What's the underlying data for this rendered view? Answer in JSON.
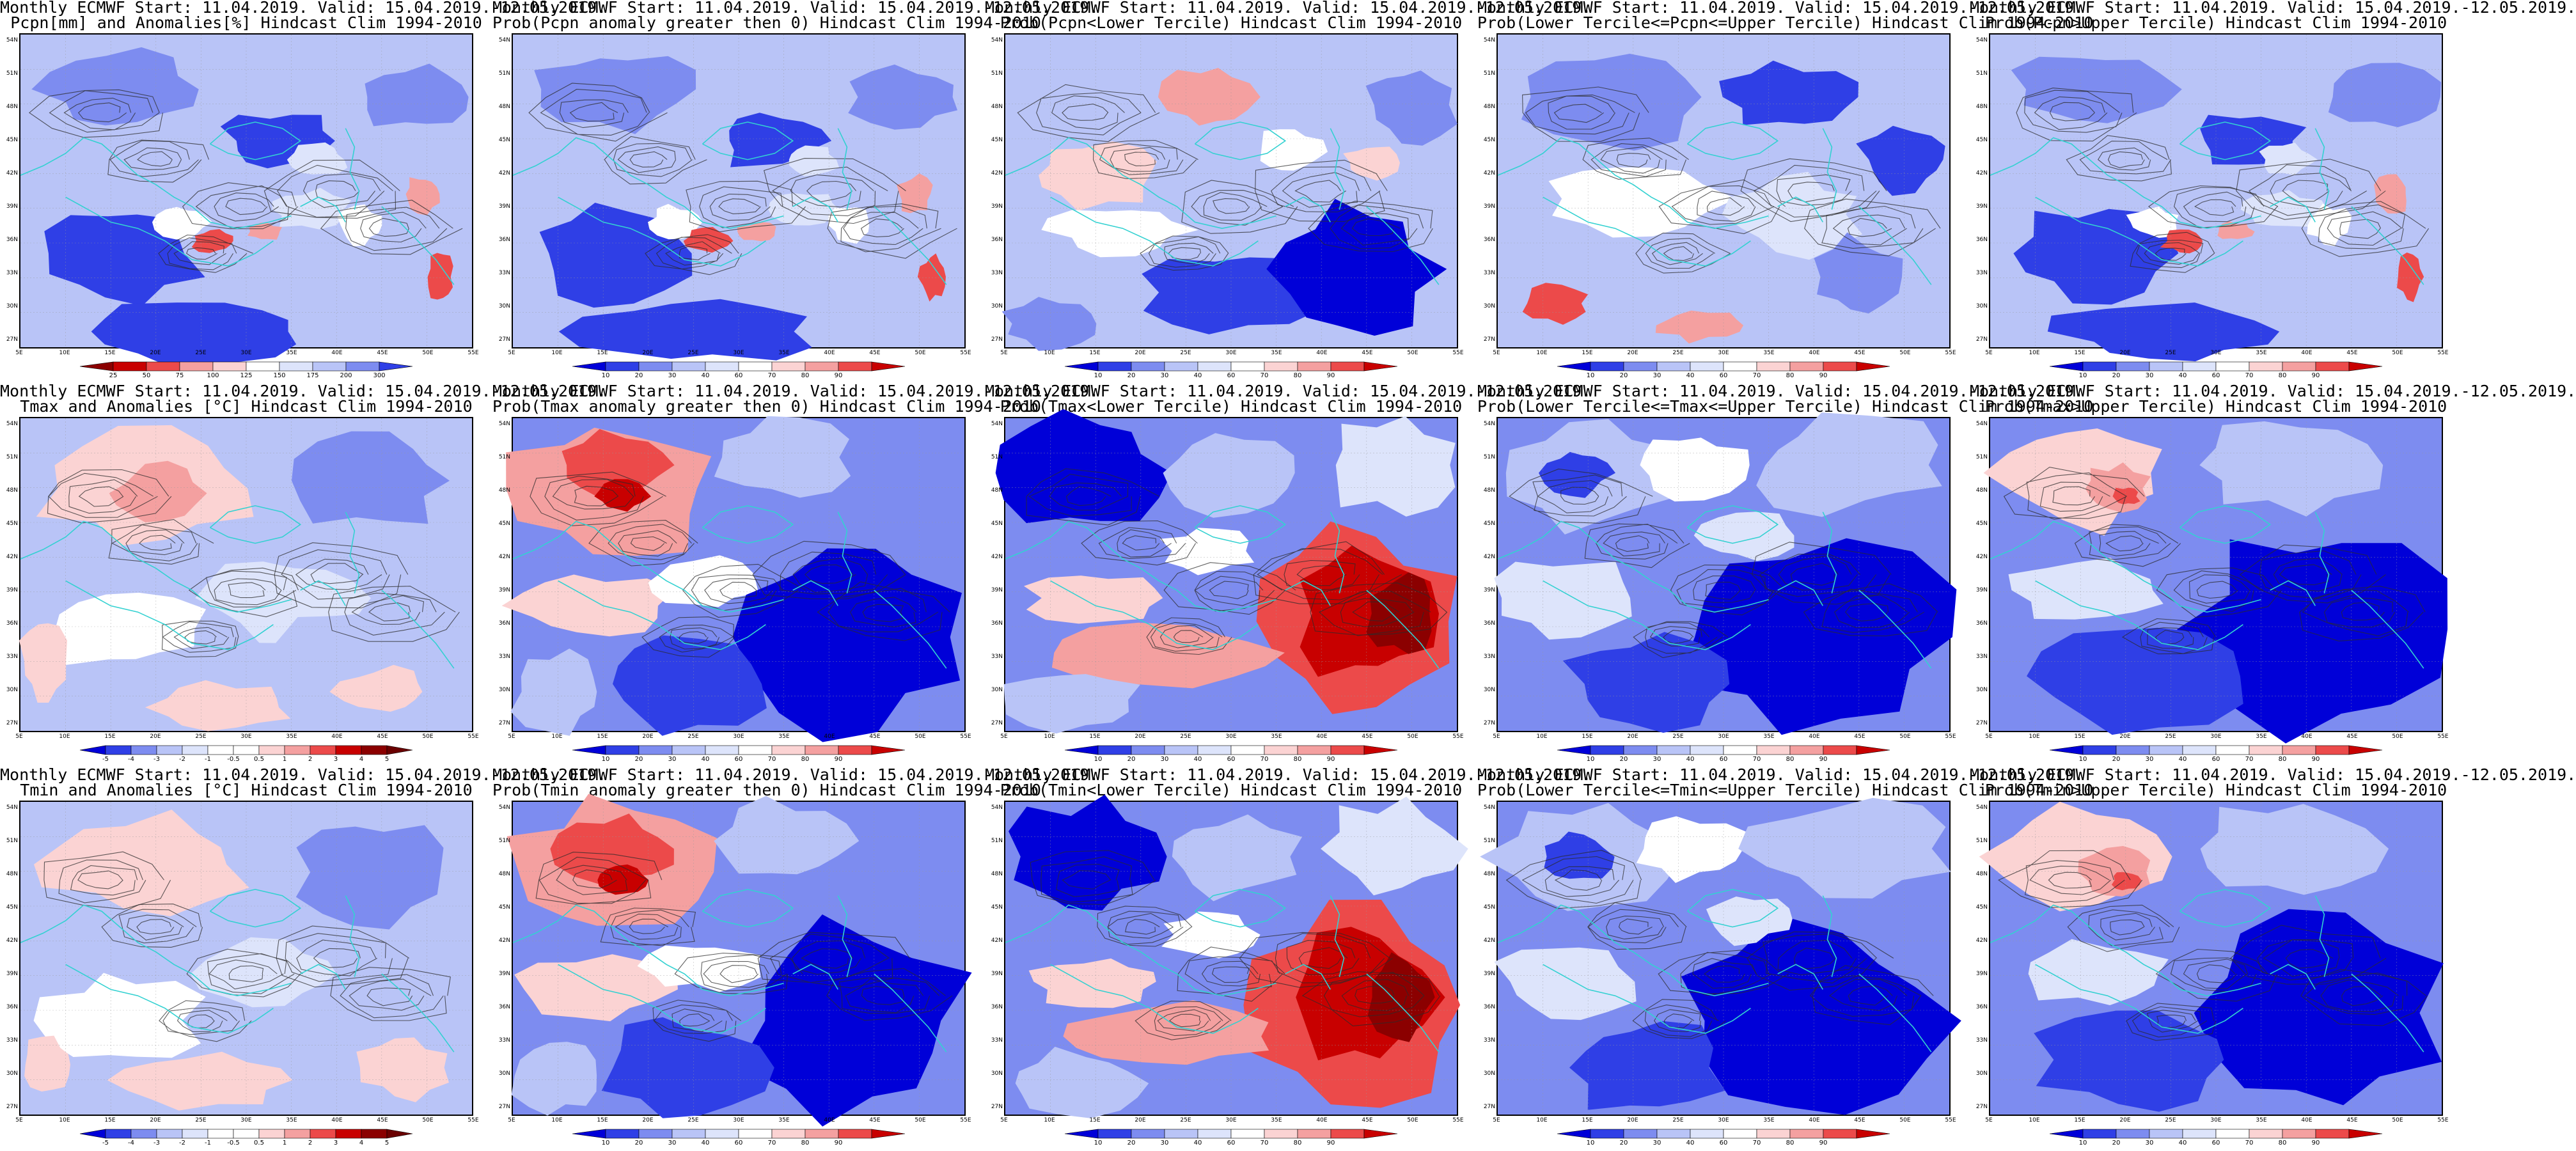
{
  "colors": {
    "deep_blue": "#0000d8",
    "blue": "#2f3fe6",
    "mid_blue": "#7d8cf0",
    "light_blue": "#b9c4f7",
    "pale_blue": "#dde4fb",
    "white": "#ffffff",
    "pale_red": "#fbd3d3",
    "light_red": "#f4a0a0",
    "red": "#ec4a4a",
    "deep_red": "#c80000",
    "dark_red": "#8b0000",
    "coast": "#33d1d1",
    "contour": "#2b2b2b"
  },
  "axes": {
    "lat_labels": [
      "54N",
      "51N",
      "48N",
      "45N",
      "42N",
      "39N",
      "36N",
      "33N",
      "30N",
      "27N"
    ],
    "lon_labels": [
      "5E",
      "10E",
      "15E",
      "20E",
      "25E",
      "30E",
      "35E",
      "40E",
      "45E",
      "50E",
      "55E"
    ]
  },
  "colorbars": {
    "pcpn_anom": [
      "25",
      "50",
      "75",
      "100",
      "125",
      "150",
      "175",
      "200",
      "300"
    ],
    "prob": [
      "10",
      "20",
      "30",
      "40",
      "60",
      "70",
      "80",
      "90"
    ],
    "prob_dark": [
      "10",
      "20",
      "30",
      "40",
      "60",
      "70",
      "80",
      "90"
    ],
    "temp_anom": [
      "-5",
      "-4",
      "-3",
      "-2",
      "-1",
      "-0.5",
      "0.5",
      "1",
      "2",
      "3",
      "4",
      "5"
    ]
  },
  "panels": [
    {
      "id": "pcpn-anom",
      "line1": "Monthly ECMWF Start: 11.04.2019. Valid: 15.04.2019.-12.05.2019.",
      "line2": "Pcpn[mm] and Anomalies[%] Hindcast Clim 1994-2010",
      "colorbar": "pcpn_anom",
      "theme": "pcpn"
    },
    {
      "id": "pcpn-prob-pos",
      "line1": "Monthly ECMWF Start: 11.04.2019. Valid: 15.04.2019.-12.05.2019.",
      "line2": "Prob(Pcpn anomaly greater then 0) Hindcast Clim 1994-2010",
      "colorbar": "prob",
      "theme": "pcpn"
    },
    {
      "id": "pcpn-prob-lower",
      "line1": "Monthly ECMWF Start: 11.04.2019. Valid: 15.04.2019.-12.05.2019.",
      "line2": "Prob(Pcpn<Lower Tercile) Hindcast Clim 1994-2010",
      "colorbar": "prob",
      "theme": "pcpn-low"
    },
    {
      "id": "pcpn-prob-middle",
      "line1": "Monthly ECMWF Start: 11.04.2019. Valid: 15.04.2019.-12.05.2019.",
      "line2": "Prob(Lower Tercile<=Pcpn<=Upper Tercile) Hindcast Clim 1994-2010",
      "colorbar": "prob",
      "theme": "pcpn-mid"
    },
    {
      "id": "pcpn-prob-upper",
      "line1": "Monthly ECMWF Start: 11.04.2019. Valid: 15.04.2019.-12.05.2019.",
      "line2": "Prob(Pcpn>Upper Tercile) Hindcast Clim 1994-2010",
      "colorbar": "prob_dark",
      "theme": "pcpn"
    },
    {
      "id": "tmax-anom",
      "line1": "Monthly ECMWF Start: 11.04.2019. Valid: 15.04.2019.-12.05.2019.",
      "line2": "Tmax and Anomalies [°C] Hindcast Clim 1994-2010",
      "colorbar": "temp_anom",
      "theme": "tmax-anom"
    },
    {
      "id": "tmax-prob-pos",
      "line1": "Monthly ECMWF Start: 11.04.2019. Valid: 15.04.2019.-12.05.2019.",
      "line2": "Prob(Tmax anomaly greater then 0) Hindcast Clim 1994-2010",
      "colorbar": "prob",
      "theme": "warm-nw"
    },
    {
      "id": "tmax-prob-lower",
      "line1": "Monthly ECMWF Start: 11.04.2019. Valid: 15.04.2019.-12.05.2019.",
      "line2": "Prob(Tmax<Lower Tercile) Hindcast Clim 1994-2010",
      "colorbar": "prob",
      "theme": "warm-se"
    },
    {
      "id": "tmax-prob-middle",
      "line1": "Monthly ECMWF Start: 11.04.2019. Valid: 15.04.2019.-12.05.2019.",
      "line2": "Prob(Lower Tercile<=Tmax<=Upper Tercile) Hindcast Clim 1994-2010",
      "colorbar": "prob",
      "theme": "mostly-blue"
    },
    {
      "id": "tmax-prob-upper",
      "line1": "Monthly ECMWF Start: 11.04.2019. Valid: 15.04.2019.-12.05.2019.",
      "line2": "Prob(Tmax>Upper Tercile) Hindcast Clim 1994-2010",
      "colorbar": "prob",
      "theme": "warm-nw-small"
    },
    {
      "id": "tmin-anom",
      "line1": "Monthly ECMWF Start: 11.04.2019. Valid: 15.04.2019.-12.05.2019.",
      "line2": "Tmin and Anomalies [°C] Hindcast Clim 1994-2010",
      "colorbar": "temp_anom",
      "theme": "tmin-anom"
    },
    {
      "id": "tmin-prob-pos",
      "line1": "Monthly ECMWF Start: 11.04.2019. Valid: 15.04.2019.-12.05.2019.",
      "line2": "Prob(Tmin anomaly greater then 0) Hindcast Clim 1994-2010",
      "colorbar": "prob",
      "theme": "warm-nw"
    },
    {
      "id": "tmin-prob-lower",
      "line1": "Monthly ECMWF Start: 11.04.2019. Valid: 15.04.2019.-12.05.2019.",
      "line2": "Prob(Tmin<Lower Tercile) Hindcast Clim 1994-2010",
      "colorbar": "prob",
      "theme": "warm-se"
    },
    {
      "id": "tmin-prob-middle",
      "line1": "Monthly ECMWF Start: 11.04.2019. Valid: 15.04.2019.-12.05.2019.",
      "line2": "Prob(Lower Tercile<=Tmin<=Upper Tercile) Hindcast Clim 1994-2010",
      "colorbar": "prob",
      "theme": "mostly-blue"
    },
    {
      "id": "tmin-prob-upper",
      "line1": "Monthly ECMWF Start: 11.04.2019. Valid: 15.04.2019.-12.05.2019.",
      "line2": "Prob(Tmin>Upper Tercile) Hindcast Clim 1994-2010",
      "colorbar": "prob",
      "theme": "warm-nw-small"
    }
  ]
}
